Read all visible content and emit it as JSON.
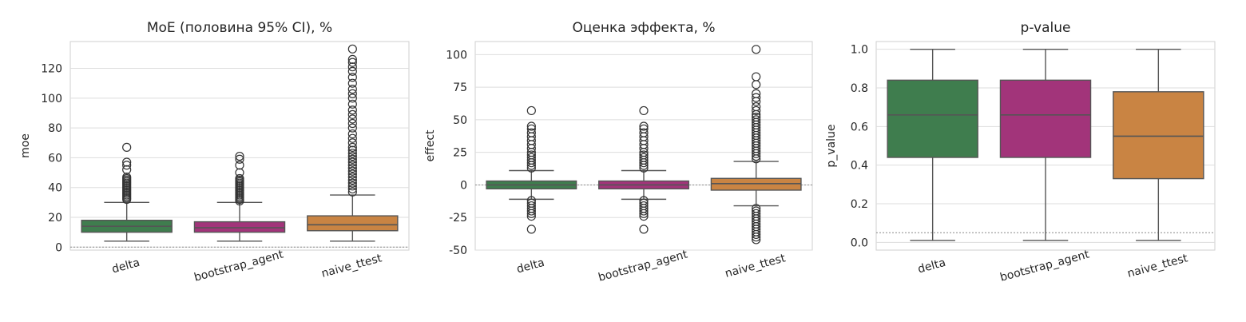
{
  "colors": {
    "delta": "#3f7d4e",
    "bootstrap_agent": "#a2347a",
    "naive_ttest": "#c98443"
  },
  "chart_data": [
    {
      "type": "box",
      "title": "MoE (половина 95% CI), %",
      "ylabel": "moe",
      "xlabel": "",
      "categories": [
        "delta",
        "bootstrap_agent",
        "naive_ttest"
      ],
      "ylim": [
        -2,
        138
      ],
      "yticks": [
        0,
        20,
        40,
        60,
        80,
        100,
        120
      ],
      "reference_line": 0,
      "grid": true,
      "boxes": [
        {
          "name": "delta",
          "whislo": 4,
          "q1": 10,
          "med": 14,
          "q3": 18,
          "whishi": 30,
          "fliers": [
            32,
            33,
            34,
            35,
            36,
            37,
            38,
            39,
            40,
            41,
            42,
            43,
            44,
            45,
            46,
            47,
            52,
            55,
            57,
            67
          ]
        },
        {
          "name": "bootstrap_agent",
          "whislo": 4,
          "q1": 10,
          "med": 13,
          "q3": 17,
          "whishi": 30,
          "fliers": [
            31,
            32,
            33,
            34,
            35,
            36,
            37,
            38,
            39,
            40,
            41,
            42,
            43,
            44,
            45,
            46,
            50,
            55,
            59,
            61
          ]
        },
        {
          "name": "naive_ttest",
          "whislo": 4,
          "q1": 11,
          "med": 15,
          "q3": 21,
          "whishi": 35,
          "fliers": [
            37,
            39,
            41,
            43,
            45,
            47,
            49,
            51,
            53,
            55,
            57,
            59,
            61,
            63,
            65,
            67,
            70,
            73,
            76,
            80,
            83,
            86,
            89,
            92,
            96,
            100,
            103,
            106,
            110,
            114,
            118,
            121,
            124,
            126,
            133
          ]
        }
      ]
    },
    {
      "type": "box",
      "title": "Оценка эффекта, %",
      "ylabel": "effect",
      "xlabel": "",
      "categories": [
        "delta",
        "bootstrap_agent",
        "naive_ttest"
      ],
      "ylim": [
        -50,
        110
      ],
      "yticks": [
        -50,
        -25,
        0,
        25,
        50,
        75,
        100
      ],
      "reference_line": 0,
      "grid": true,
      "boxes": [
        {
          "name": "delta",
          "whislo": -11,
          "q1": -3,
          "med": 0,
          "q3": 3,
          "whishi": 11,
          "fliers": [
            -34,
            -24,
            -22,
            -20,
            -18,
            -16,
            -14,
            -12,
            13,
            15,
            17,
            19,
            21,
            23,
            25,
            28,
            31,
            34,
            37,
            40,
            43,
            45,
            57
          ]
        },
        {
          "name": "bootstrap_agent",
          "whislo": -11,
          "q1": -3,
          "med": 0,
          "q3": 3,
          "whishi": 11,
          "fliers": [
            -34,
            -24,
            -22,
            -20,
            -18,
            -16,
            -14,
            -12,
            13,
            15,
            17,
            19,
            21,
            23,
            25,
            28,
            31,
            34,
            37,
            40,
            43,
            45,
            57
          ]
        },
        {
          "name": "naive_ttest",
          "whislo": -16,
          "q1": -4,
          "med": 1,
          "q3": 5,
          "whishi": 18,
          "fliers": [
            -42,
            -40,
            -38,
            -36,
            -34,
            -32,
            -30,
            -28,
            -26,
            -24,
            -22,
            -20,
            -18,
            20,
            22,
            24,
            26,
            28,
            30,
            32,
            34,
            36,
            38,
            40,
            42,
            44,
            46,
            48,
            50,
            52,
            54,
            57,
            60,
            64,
            67,
            70,
            77,
            83,
            104
          ]
        }
      ]
    },
    {
      "type": "box",
      "title": "p-value",
      "ylabel": "p_value",
      "xlabel": "",
      "categories": [
        "delta",
        "bootstrap_agent",
        "naive_ttest"
      ],
      "ylim": [
        -0.04,
        1.04
      ],
      "yticks": [
        0.0,
        0.2,
        0.4,
        0.6,
        0.8,
        1.0
      ],
      "ytick_labels": [
        "0.0",
        "0.2",
        "0.4",
        "0.6",
        "0.8",
        "1.0"
      ],
      "reference_line": 0.05,
      "grid": true,
      "boxes": [
        {
          "name": "delta",
          "whislo": 0.01,
          "q1": 0.44,
          "med": 0.66,
          "q3": 0.84,
          "whishi": 1.0,
          "fliers": []
        },
        {
          "name": "bootstrap_agent",
          "whislo": 0.01,
          "q1": 0.44,
          "med": 0.66,
          "q3": 0.84,
          "whishi": 1.0,
          "fliers": []
        },
        {
          "name": "naive_ttest",
          "whislo": 0.01,
          "q1": 0.33,
          "med": 0.55,
          "q3": 0.78,
          "whishi": 1.0,
          "fliers": []
        }
      ]
    }
  ]
}
